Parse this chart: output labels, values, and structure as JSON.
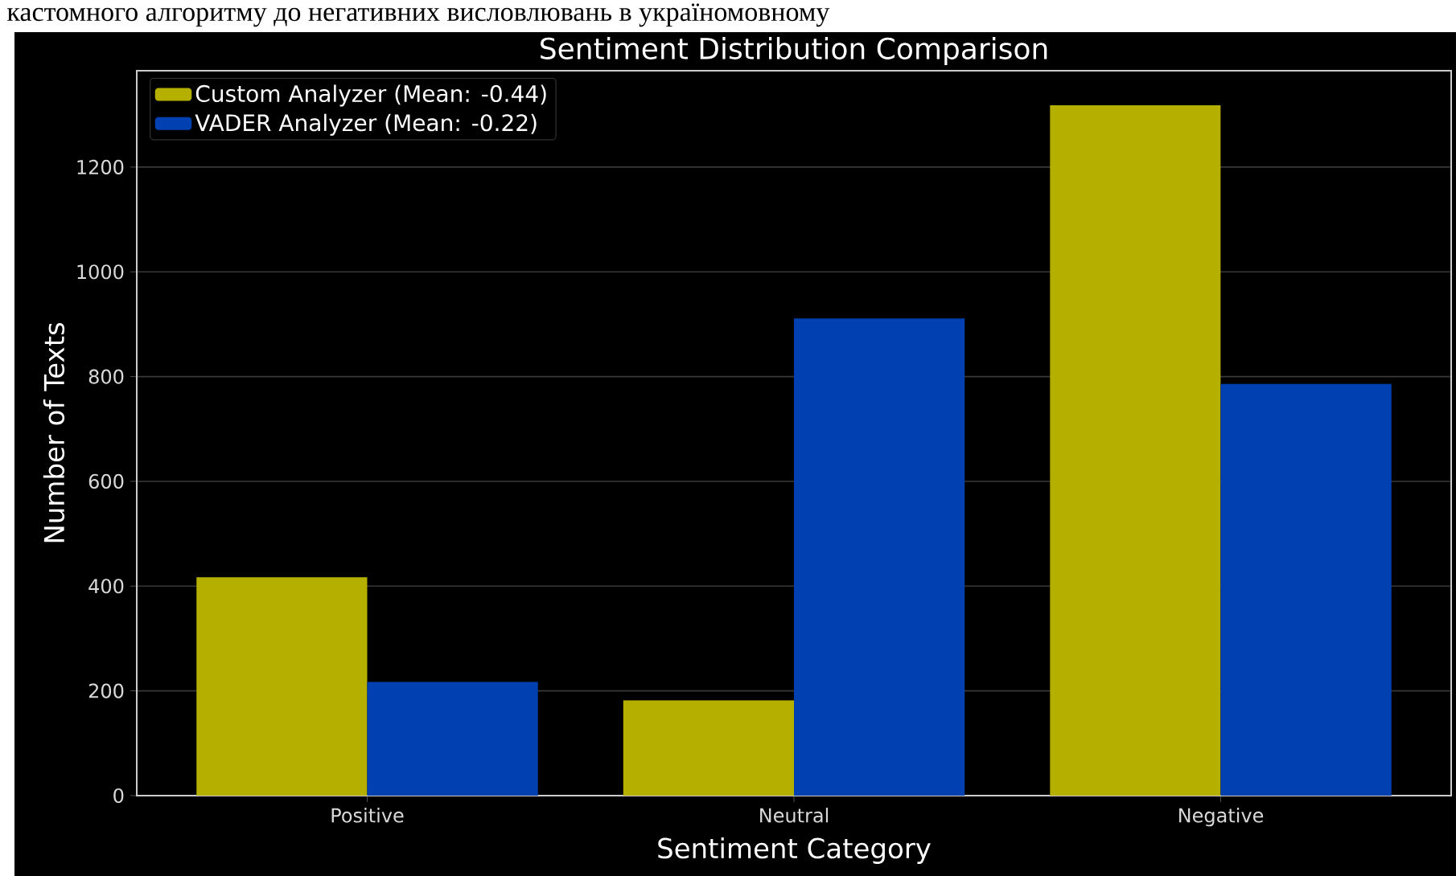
{
  "chart_data": {
    "type": "bar",
    "title": "Sentiment Distribution Comparison",
    "xlabel": "Sentiment Category",
    "ylabel": "Number of Texts",
    "annotations": [
      "кастомного алгоритму до негативних висловлювань в україномовному"
    ],
    "categories": [
      "Positive",
      "Neutral",
      "Negative"
    ],
    "series": [
      {
        "name": "Custom Analyzer (Mean: -0.44)",
        "color": "#b5b000",
        "values": [
          417,
          182,
          1318
        ]
      },
      {
        "name": "VADER Analyzer (Mean: -0.22)",
        "color": "#0040b0",
        "values": [
          217,
          911,
          786
        ]
      }
    ],
    "ylim": [
      0,
      1384
    ],
    "yticks": [
      0,
      200,
      400,
      600,
      800,
      1000,
      1200
    ],
    "grid": "y",
    "legend": "top left"
  }
}
